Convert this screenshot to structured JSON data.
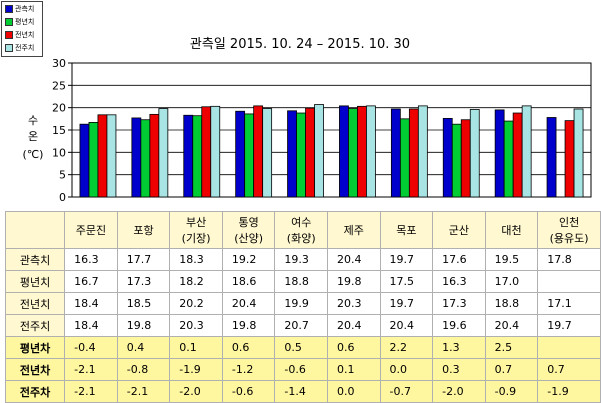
{
  "legend": [
    {
      "label": "관측치",
      "color": "#0000cc"
    },
    {
      "label": "평년치",
      "color": "#00cc33"
    },
    {
      "label": "전년치",
      "color": "#ee0000"
    },
    {
      "label": "전주치",
      "color": "#a8e4e4"
    }
  ],
  "chart_data": {
    "type": "bar",
    "title": "관측일 2015. 10. 24 – 2015. 10. 30",
    "ylabel": "수\n온\n(℃)",
    "ylim": [
      0,
      30
    ],
    "yticks": [
      0,
      5,
      10,
      15,
      20,
      25,
      30
    ],
    "grid": true,
    "categories": [
      "주문진",
      "포항",
      "부산(기장)",
      "통영(산양)",
      "여수(화양)",
      "제주",
      "목포",
      "군산",
      "대천",
      "인천(용유도)"
    ],
    "series": [
      {
        "name": "관측치",
        "color": "#0000cc",
        "values": [
          16.3,
          17.7,
          18.3,
          19.2,
          19.3,
          20.4,
          19.7,
          17.6,
          19.5,
          17.8
        ]
      },
      {
        "name": "평년치",
        "color": "#00cc33",
        "values": [
          16.7,
          17.3,
          18.2,
          18.6,
          18.8,
          19.8,
          17.5,
          16.3,
          17.0,
          null
        ]
      },
      {
        "name": "전년치",
        "color": "#ee0000",
        "values": [
          18.4,
          18.5,
          20.2,
          20.4,
          19.9,
          20.3,
          19.7,
          17.3,
          18.8,
          17.1
        ]
      },
      {
        "name": "전주치",
        "color": "#a8e4e4",
        "values": [
          18.4,
          19.8,
          20.3,
          19.8,
          20.7,
          20.4,
          20.4,
          19.6,
          20.4,
          19.7
        ]
      }
    ]
  },
  "table": {
    "headers": [
      {
        "line1": "주문진",
        "line2": ""
      },
      {
        "line1": "포항",
        "line2": ""
      },
      {
        "line1": "부산",
        "line2": "(기장)"
      },
      {
        "line1": "통영",
        "line2": "(산양)"
      },
      {
        "line1": "여수",
        "line2": "(화양)"
      },
      {
        "line1": "제주",
        "line2": ""
      },
      {
        "line1": "목포",
        "line2": ""
      },
      {
        "line1": "군산",
        "line2": ""
      },
      {
        "line1": "대천",
        "line2": ""
      },
      {
        "line1": "인천",
        "line2": "(용유도)"
      }
    ],
    "rows": [
      {
        "label": "관측치",
        "style": "plain",
        "values": [
          "16.3",
          "17.7",
          "18.3",
          "19.2",
          "19.3",
          "20.4",
          "19.7",
          "17.6",
          "19.5",
          "17.8"
        ]
      },
      {
        "label": "평년치",
        "style": "plain",
        "values": [
          "16.7",
          "17.3",
          "18.2",
          "18.6",
          "18.8",
          "19.8",
          "17.5",
          "16.3",
          "17.0",
          ""
        ]
      },
      {
        "label": "전년치",
        "style": "plain",
        "values": [
          "18.4",
          "18.5",
          "20.2",
          "20.4",
          "19.9",
          "20.3",
          "19.7",
          "17.3",
          "18.8",
          "17.1"
        ]
      },
      {
        "label": "전주치",
        "style": "plain",
        "values": [
          "18.4",
          "19.8",
          "20.3",
          "19.8",
          "20.7",
          "20.4",
          "20.4",
          "19.6",
          "20.4",
          "19.7"
        ]
      },
      {
        "label": "평년차",
        "style": "diff",
        "values": [
          "-0.4",
          "0.4",
          "0.1",
          "0.6",
          "0.5",
          "0.6",
          "2.2",
          "1.3",
          "2.5",
          ""
        ]
      },
      {
        "label": "전년차",
        "style": "diff",
        "values": [
          "-2.1",
          "-0.8",
          "-1.9",
          "-1.2",
          "-0.6",
          "0.1",
          "0.0",
          "0.3",
          "0.7",
          "0.7"
        ]
      },
      {
        "label": "전주차",
        "style": "diff",
        "values": [
          "-2.1",
          "-2.1",
          "-2.0",
          "-0.6",
          "-1.4",
          "0.0",
          "-0.7",
          "-2.0",
          "-0.9",
          "-1.9"
        ]
      }
    ]
  }
}
